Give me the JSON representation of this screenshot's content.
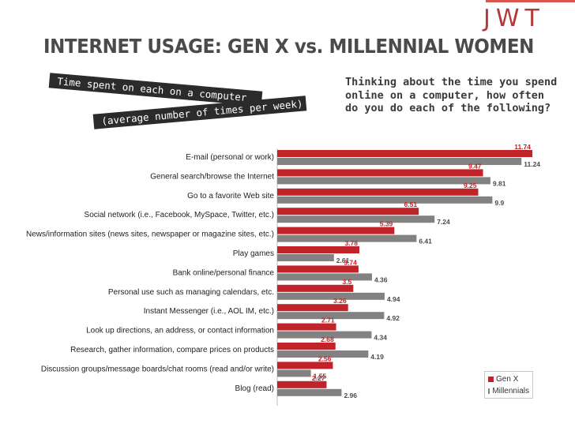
{
  "header": {
    "logo_text": "JWT",
    "title": "INTERNET USAGE: GEN X vs. MILLENNIAL WOMEN",
    "strip_line1": "Time spent on each on a computer",
    "strip_line2": "(average number of times per week)",
    "question": "Thinking about the time you spend online on a computer, how often do you do each of the following?"
  },
  "colors": {
    "genx": "#c0232a",
    "millennials": "#828282"
  },
  "chart_data": {
    "type": "bar",
    "orientation": "horizontal",
    "title": "Time spent on each on a computer (average number of times per week)",
    "categories": [
      "E-mail (personal or work)",
      "General search/browse the Internet",
      "Go to a favorite Web site",
      "Social network (i.e., Facebook, MySpace, Twitter, etc.)",
      "News/information sites (news sites, newspaper or magazine sites, etc.)",
      "Play games",
      "Bank online/personal finance",
      "Personal use such as managing calendars, etc.",
      "Instant Messenger (i.e., AOL IM, etc.)",
      "Look up directions, an address, or contact information",
      "Research, gather information, compare prices on products",
      "Discussion groups/message boards/chat rooms (read and/or write)",
      "Blog (read)"
    ],
    "series": [
      {
        "name": "Gen X",
        "values": [
          11.74,
          9.47,
          9.25,
          6.51,
          5.39,
          3.78,
          3.74,
          3.5,
          3.26,
          2.71,
          2.68,
          2.56,
          2.27
        ]
      },
      {
        "name": "Millennials",
        "values": [
          11.24,
          9.81,
          9.9,
          7.24,
          6.41,
          2.61,
          4.36,
          4.94,
          4.92,
          4.34,
          4.19,
          1.55,
          2.96
        ]
      }
    ],
    "labels": [
      [
        "11.74",
        "9.47",
        "9.25",
        "6.51",
        "5.39",
        "3.78",
        "3.74",
        "3.5",
        "3.26",
        "2.71",
        "2.68",
        "2.56",
        "2.27"
      ],
      [
        "11.24",
        "9.81",
        "9.9",
        "7.24",
        "6.41",
        "2.61",
        "4.36",
        "4.94",
        "4.92",
        "4.34",
        "4.19",
        "1.55",
        "2.96"
      ]
    ],
    "xlim": [
      0,
      11.74
    ],
    "legend_position": "bottom-right",
    "grid": false
  }
}
